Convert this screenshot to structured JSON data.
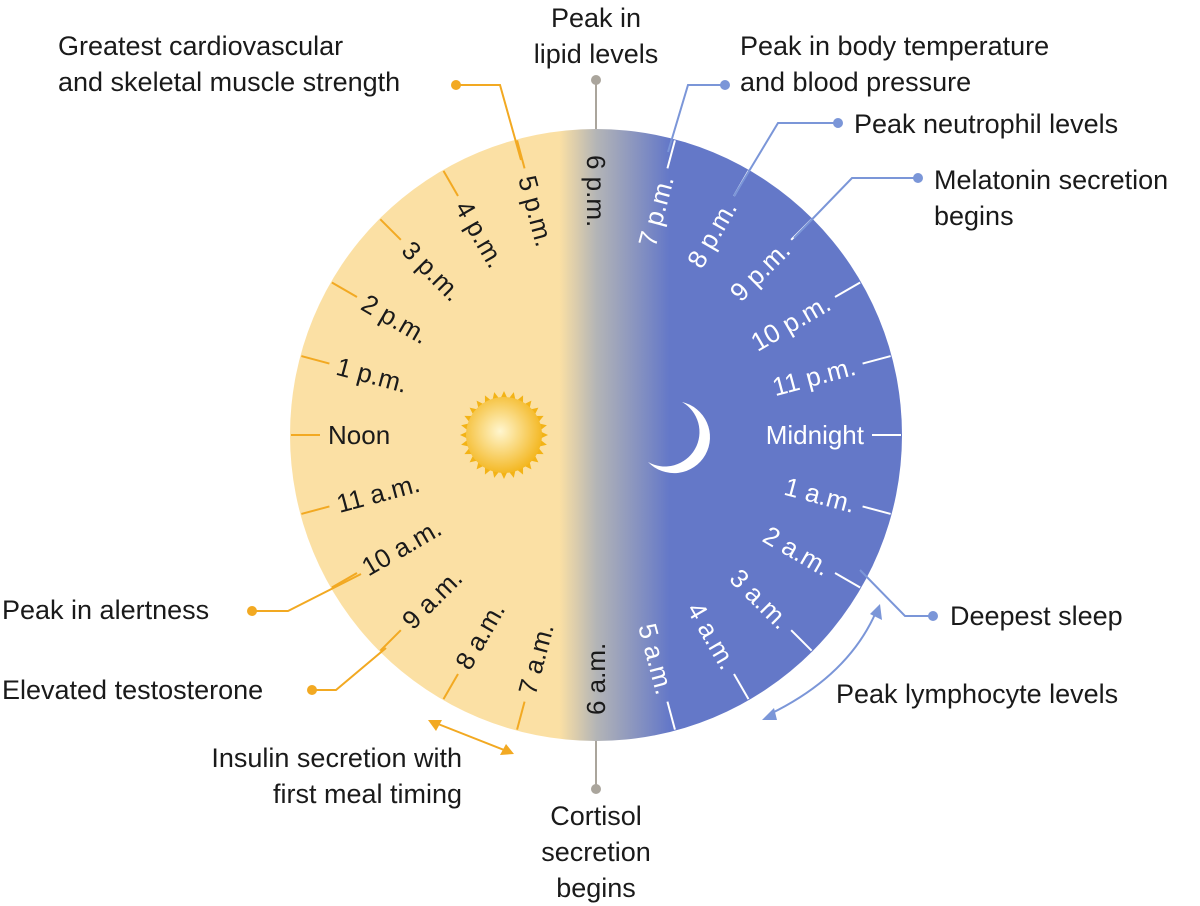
{
  "colors": {
    "day": "#fbe0a4",
    "day_edge": "#f7d48f",
    "night": "#6478c8",
    "day_accent": "#f2a922",
    "night_accent": "#7b96d8",
    "neutral_accent": "#aaa59c",
    "sun_core": "#fff6cf",
    "sun_edge": "#f3b316",
    "moon": "#ffffff"
  },
  "icons": {
    "sun": "sun-icon",
    "moon": "moon-icon"
  },
  "clock": {
    "hour_labels": [
      "Midnight",
      "1 a.m.",
      "2 a.m.",
      "3 a.m.",
      "4 a.m.",
      "5 a.m.",
      "6 a.m.",
      "7 a.m.",
      "8 a.m.",
      "9 a.m.",
      "10 a.m.",
      "11 a.m.",
      "Noon",
      "1 p.m.",
      "2 p.m.",
      "3 p.m.",
      "4 p.m.",
      "5 p.m.",
      "6 p.m.",
      "7 p.m.",
      "8 p.m.",
      "9 p.m.",
      "10 p.m.",
      "11 p.m."
    ]
  },
  "annotations": {
    "cardio": [
      "Greatest cardiovascular",
      "and skeletal muscle strength"
    ],
    "lipid": [
      "Peak in",
      "lipid levels"
    ],
    "body_temp": [
      "Peak in body temperature",
      "and blood pressure"
    ],
    "neutrophil": [
      "Peak neutrophil levels"
    ],
    "melatonin": [
      "Melatonin secretion",
      "begins"
    ],
    "alertness": [
      "Peak in alertness"
    ],
    "testosterone": [
      "Elevated testosterone"
    ],
    "insulin": [
      "Insulin secretion with",
      "first meal timing"
    ],
    "cortisol": [
      "Cortisol",
      "secretion",
      "begins"
    ],
    "deepest_sleep": [
      "Deepest sleep"
    ],
    "lymphocyte": [
      "Peak lymphocyte levels"
    ]
  }
}
